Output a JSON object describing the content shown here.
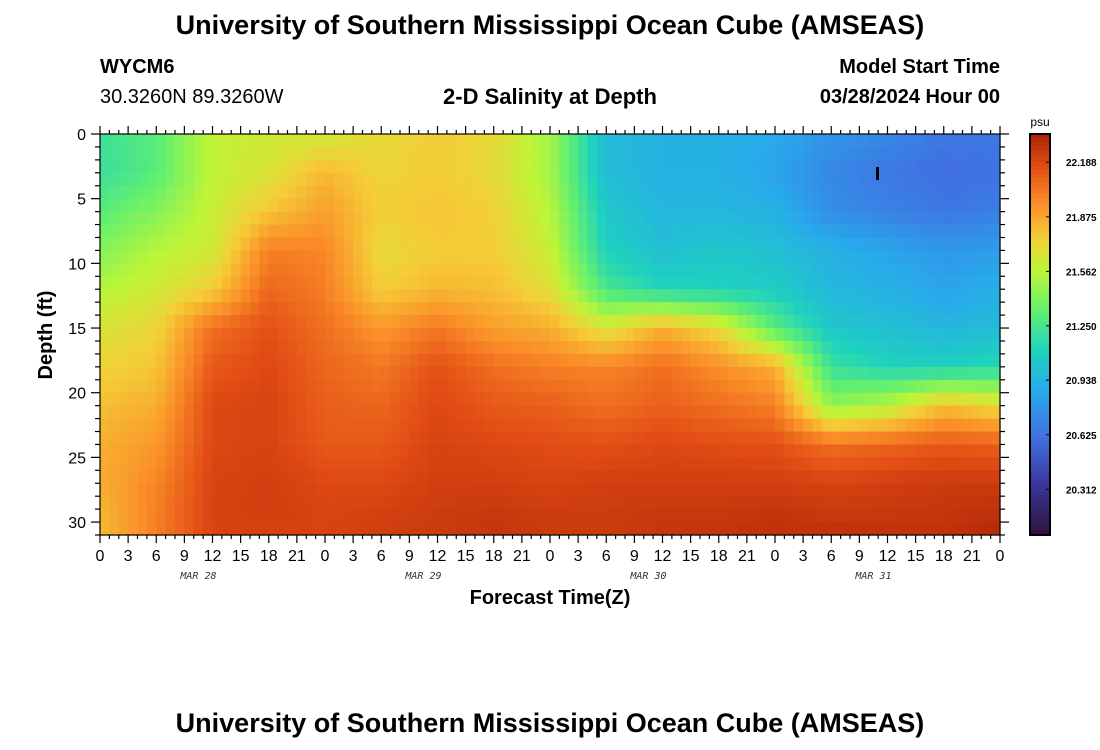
{
  "header": {
    "title": "University of Southern Mississippi Ocean Cube (AMSEAS)",
    "station": "WYCM6",
    "coords": "30.3260N  89.3260W",
    "subtitle": "2-D Salinity at Depth",
    "start_label": "Model Start Time",
    "start_value": "03/28/2024 Hour 00"
  },
  "footer": {
    "title": "University of Southern Mississippi Ocean Cube (AMSEAS)"
  },
  "chart_data": {
    "type": "heatmap",
    "title": "2-D Salinity at Depth",
    "xlabel": "Forecast Time(Z)",
    "ylabel": "Depth (ft)",
    "x_tick_labels": [
      "0",
      "3",
      "6",
      "9",
      "12",
      "15",
      "18",
      "21",
      "0",
      "3",
      "6",
      "9",
      "12",
      "15",
      "18",
      "21",
      "0",
      "3",
      "6",
      "9",
      "12",
      "15",
      "18",
      "21",
      "0",
      "3",
      "6",
      "9",
      "12",
      "15",
      "18",
      "21",
      "0"
    ],
    "date_labels": [
      "MAR 28",
      "MAR 29",
      "MAR 30",
      "MAR 31"
    ],
    "xlim_hours": [
      0,
      96
    ],
    "ylim_ft": [
      0,
      31
    ],
    "y_ticks": [
      0,
      5,
      10,
      15,
      20,
      25,
      30
    ],
    "colorbar": {
      "unit": "psu",
      "ticks": [
        "22.188",
        "21.875",
        "21.562",
        "21.250",
        "20.938",
        "20.625",
        "20.312"
      ],
      "range": [
        20.05,
        22.35
      ]
    },
    "grid_depths_ft": [
      0,
      3,
      6,
      9,
      12,
      15,
      18,
      21,
      24,
      27,
      30,
      31
    ],
    "grid_hours": [
      0,
      6,
      12,
      18,
      24,
      30,
      36,
      42,
      48,
      54,
      60,
      66,
      72,
      78,
      84,
      90,
      96
    ],
    "salinity_psu": [
      [
        21.22,
        21.3,
        21.58,
        21.62,
        21.62,
        21.7,
        21.75,
        21.7,
        21.5,
        20.98,
        20.92,
        20.92,
        20.88,
        20.78,
        20.72,
        20.65,
        20.65
      ],
      [
        21.2,
        21.3,
        21.58,
        21.65,
        21.82,
        21.72,
        21.75,
        21.7,
        21.5,
        20.98,
        20.92,
        20.92,
        20.85,
        20.72,
        20.65,
        20.6,
        20.62
      ],
      [
        21.3,
        21.42,
        21.6,
        21.78,
        21.9,
        21.74,
        21.78,
        21.74,
        21.55,
        21.05,
        20.95,
        20.95,
        20.92,
        20.75,
        20.7,
        20.65,
        20.68
      ],
      [
        21.42,
        21.55,
        21.62,
        22.0,
        21.98,
        21.7,
        21.75,
        21.75,
        21.6,
        21.1,
        21.0,
        21.05,
        21.0,
        20.92,
        20.85,
        20.8,
        20.82
      ],
      [
        21.55,
        21.62,
        21.75,
        22.08,
        22.0,
        21.75,
        21.82,
        21.8,
        21.68,
        21.25,
        21.12,
        21.1,
        21.08,
        20.95,
        20.92,
        20.85,
        20.9
      ],
      [
        21.65,
        21.72,
        22.05,
        22.15,
        22.05,
        21.92,
        22.02,
        21.9,
        21.85,
        21.65,
        21.85,
        21.7,
        21.3,
        21.05,
        21.0,
        20.95,
        20.98
      ],
      [
        21.72,
        21.78,
        22.12,
        22.18,
        22.08,
        22.02,
        22.15,
        22.05,
        22.0,
        21.98,
        22.05,
        21.95,
        21.85,
        21.2,
        21.12,
        21.1,
        21.15
      ],
      [
        21.8,
        21.85,
        22.18,
        22.2,
        22.1,
        22.08,
        22.18,
        22.12,
        22.1,
        22.05,
        22.1,
        22.05,
        22.0,
        21.45,
        21.55,
        21.8,
        21.7
      ],
      [
        21.85,
        21.92,
        22.18,
        22.2,
        22.12,
        22.12,
        22.2,
        22.18,
        22.16,
        22.15,
        22.18,
        22.16,
        22.15,
        22.05,
        22.08,
        22.12,
        22.1
      ],
      [
        21.85,
        21.98,
        22.2,
        22.22,
        22.18,
        22.18,
        22.22,
        22.22,
        22.2,
        22.22,
        22.22,
        22.22,
        22.22,
        22.2,
        22.22,
        22.24,
        22.24
      ],
      [
        21.82,
        22.0,
        22.2,
        22.22,
        22.2,
        22.22,
        22.24,
        22.26,
        22.24,
        22.24,
        22.26,
        22.26,
        22.28,
        22.26,
        22.26,
        22.27,
        22.3
      ],
      [
        21.8,
        22.0,
        22.2,
        22.2,
        22.2,
        22.22,
        22.24,
        22.26,
        22.24,
        22.24,
        22.26,
        22.26,
        22.28,
        22.28,
        22.28,
        22.28,
        22.32
      ]
    ]
  }
}
